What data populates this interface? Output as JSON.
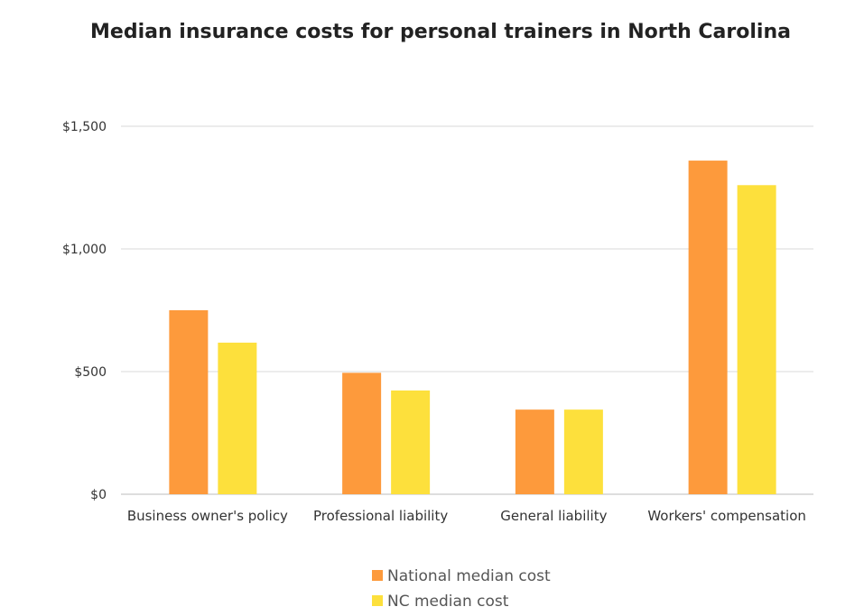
{
  "chart_data": {
    "type": "bar",
    "title": "Median insurance costs for personal trainers in North Carolina",
    "categories": [
      "Business owner's policy",
      "Professional liability",
      "General liability",
      "Workers' compensation"
    ],
    "series": [
      {
        "name": "National median cost",
        "values": [
          750,
          495,
          345,
          1360
        ]
      },
      {
        "name": "NC median cost",
        "values": [
          618,
          423,
          345,
          1260
        ]
      }
    ],
    "y_ticks": [
      0,
      500,
      1000,
      1500
    ],
    "y_tick_labels": [
      "$0",
      "$500",
      "$1,000",
      "$1,500"
    ],
    "ylim": [
      0,
      1500
    ],
    "grid": true,
    "legend_position": "bottom",
    "colors": [
      "#fd9a3c",
      "#fde03c"
    ]
  }
}
